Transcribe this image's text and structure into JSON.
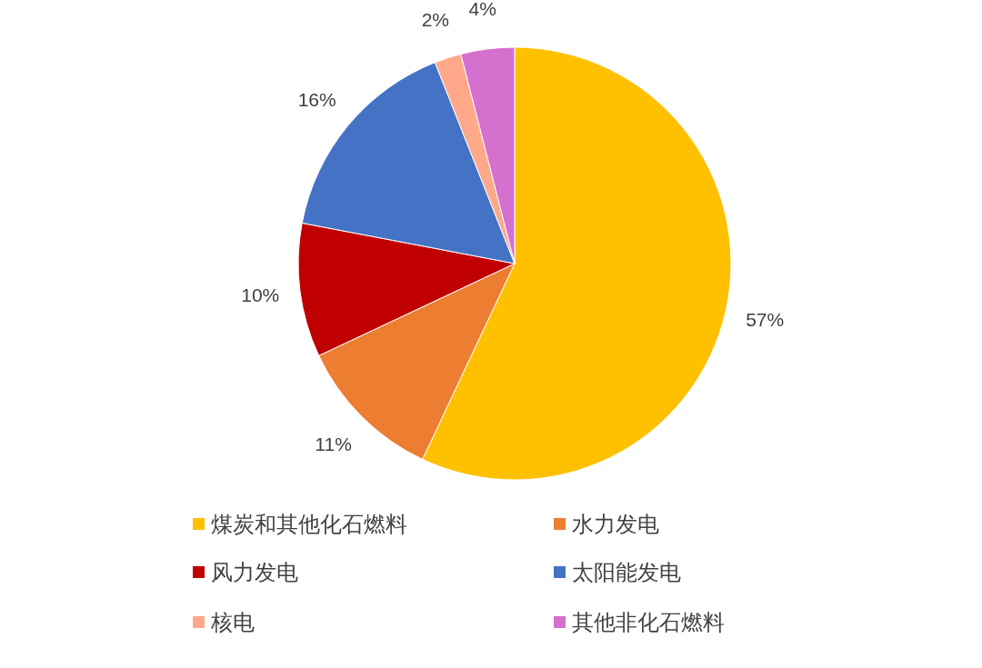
{
  "chart_data": {
    "type": "pie",
    "categories": [
      "煤炭和其他化石燃料",
      "水力发电",
      "风力发电",
      "太阳能发电",
      "核电",
      "其他非化石燃料"
    ],
    "values": [
      57,
      11,
      10,
      16,
      2,
      4
    ],
    "value_labels": [
      "57%",
      "11%",
      "10%",
      "16%",
      "2%",
      "4%"
    ],
    "colors": [
      "#ffc000",
      "#ed7d31",
      "#c00000",
      "#4472c4",
      "#ffa98a",
      "#d670cf"
    ],
    "legend": "bottom"
  }
}
